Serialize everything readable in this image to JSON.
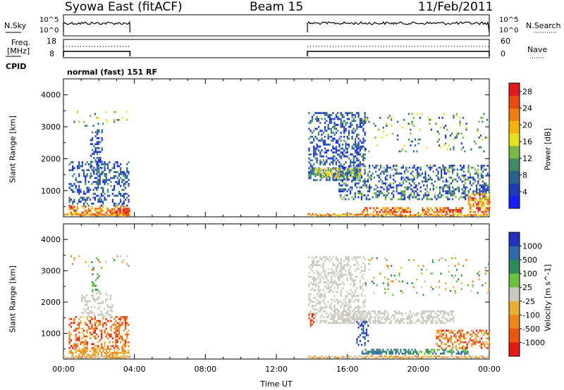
{
  "header": {
    "station": "Syowa East (fitACF)",
    "beam": "Beam 15",
    "date": "11/Feb/2011"
  },
  "top_strip": {
    "nsky_label": "N.Sky",
    "nsky_ticks": [
      "10^5",
      "10^0"
    ],
    "nsearch_label": "N.Search",
    "nsearch_ticks": [
      "10^5",
      "10^0"
    ],
    "freq_label_1": "Freq.",
    "freq_label_2": "[MHz]",
    "freq_ticks": [
      "18",
      "8"
    ],
    "nave_label": "Nave",
    "nave_ticks": [
      "60",
      "0"
    ],
    "cpid_label": "CPID",
    "cpid_value": "normal (fast) 151 RF",
    "coverage_hours": [
      [
        0.0,
        3.75
      ],
      [
        13.75,
        24.0
      ]
    ]
  },
  "chart_data": [
    {
      "type": "heatmap",
      "title": "",
      "xlabel": "",
      "ylabel": "Slant Range [km]",
      "xlim": [
        0,
        24
      ],
      "ylim": [
        180,
        4500
      ],
      "yticks": [
        1000,
        2000,
        3000,
        4000
      ],
      "colorbar": {
        "label": "Power [dB]",
        "ticks": [
          4,
          8,
          12,
          16,
          20,
          24,
          28
        ],
        "range": [
          0,
          30
        ],
        "colors": [
          "#1520ff",
          "#1c3cb8",
          "#2a6090",
          "#3f8a66",
          "#77b848",
          "#e6e020",
          "#f4b410",
          "#f27c10",
          "#ea4a12",
          "#e01a1a"
        ]
      },
      "observed_hours": [
        [
          0.0,
          3.75
        ],
        [
          13.75,
          24.0
        ]
      ]
    },
    {
      "type": "heatmap",
      "title": "",
      "xlabel": "Time UT",
      "ylabel": "Slant Range [km]",
      "xlim": [
        0,
        24
      ],
      "ylim": [
        180,
        4500
      ],
      "yticks": [
        1000,
        2000,
        3000,
        4000
      ],
      "xtick_labels": [
        "00:00",
        "04:00",
        "08:00",
        "12:00",
        "16:00",
        "20:00",
        "00:00"
      ],
      "colorbar": {
        "label": "Velocity [m s^-1]",
        "ticks": [
          "1000",
          "500",
          "100",
          "25",
          "-25",
          "-100",
          "-500",
          "-1000"
        ],
        "colors": [
          "#2030c0",
          "#2f6aa8",
          "#2e8a58",
          "#6cc040",
          "#c9c9bd",
          "#e8b030",
          "#f08418",
          "#ec5410",
          "#e21a14"
        ]
      },
      "observed_hours": [
        [
          0.0,
          3.75
        ],
        [
          13.75,
          24.0
        ]
      ]
    }
  ]
}
